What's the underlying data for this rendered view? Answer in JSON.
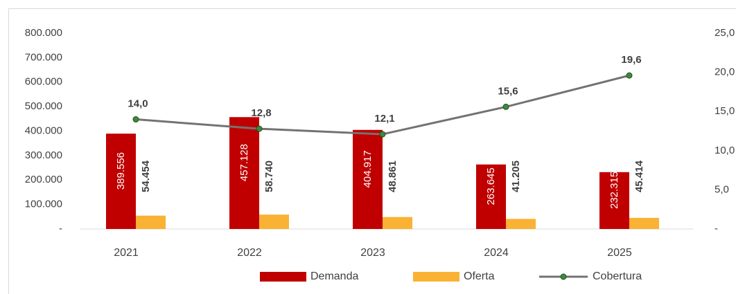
{
  "chart_data": {
    "type": "bar",
    "categories": [
      "2021",
      "2022",
      "2023",
      "2024",
      "2025"
    ],
    "series": [
      {
        "name": "Demanda",
        "color": "#c00000",
        "values": [
          389556,
          457128,
          404917,
          263645,
          232315
        ],
        "value_labels": [
          "389.556",
          "457.128",
          "404.917",
          "263.645",
          "232.315"
        ]
      },
      {
        "name": "Oferta",
        "color": "#f9b233",
        "values": [
          54454,
          58740,
          48861,
          41205,
          45414
        ],
        "value_labels": [
          "54.454",
          "58.740",
          "48.861",
          "41.205",
          "45.414"
        ]
      },
      {
        "name": "Cobertura",
        "type": "line",
        "axis": "y2",
        "color": "#767171",
        "marker_color": "#3d8b3d",
        "values": [
          14.0,
          12.8,
          12.1,
          15.6,
          19.6
        ],
        "value_labels": [
          "14,0",
          "12,8",
          "12,1",
          "15,6",
          "19,6"
        ]
      }
    ],
    "ylim": [
      0,
      800000
    ],
    "yticks": [
      {
        "value": 0,
        "label": "-"
      },
      {
        "value": 100000,
        "label": "100.000"
      },
      {
        "value": 200000,
        "label": "200.000"
      },
      {
        "value": 300000,
        "label": "300.000"
      },
      {
        "value": 400000,
        "label": "400.000"
      },
      {
        "value": 500000,
        "label": "500.000"
      },
      {
        "value": 600000,
        "label": "600.000"
      },
      {
        "value": 700000,
        "label": "700.000"
      },
      {
        "value": 800000,
        "label": "800.000"
      }
    ],
    "y2lim": [
      0,
      25
    ],
    "y2ticks": [
      {
        "value": 0,
        "label": "-"
      },
      {
        "value": 5,
        "label": "5,0"
      },
      {
        "value": 10,
        "label": "10,0"
      },
      {
        "value": 15,
        "label": "15,0"
      },
      {
        "value": 20,
        "label": "20,0"
      },
      {
        "value": 25,
        "label": "25,0"
      }
    ],
    "legend": "bottom"
  }
}
